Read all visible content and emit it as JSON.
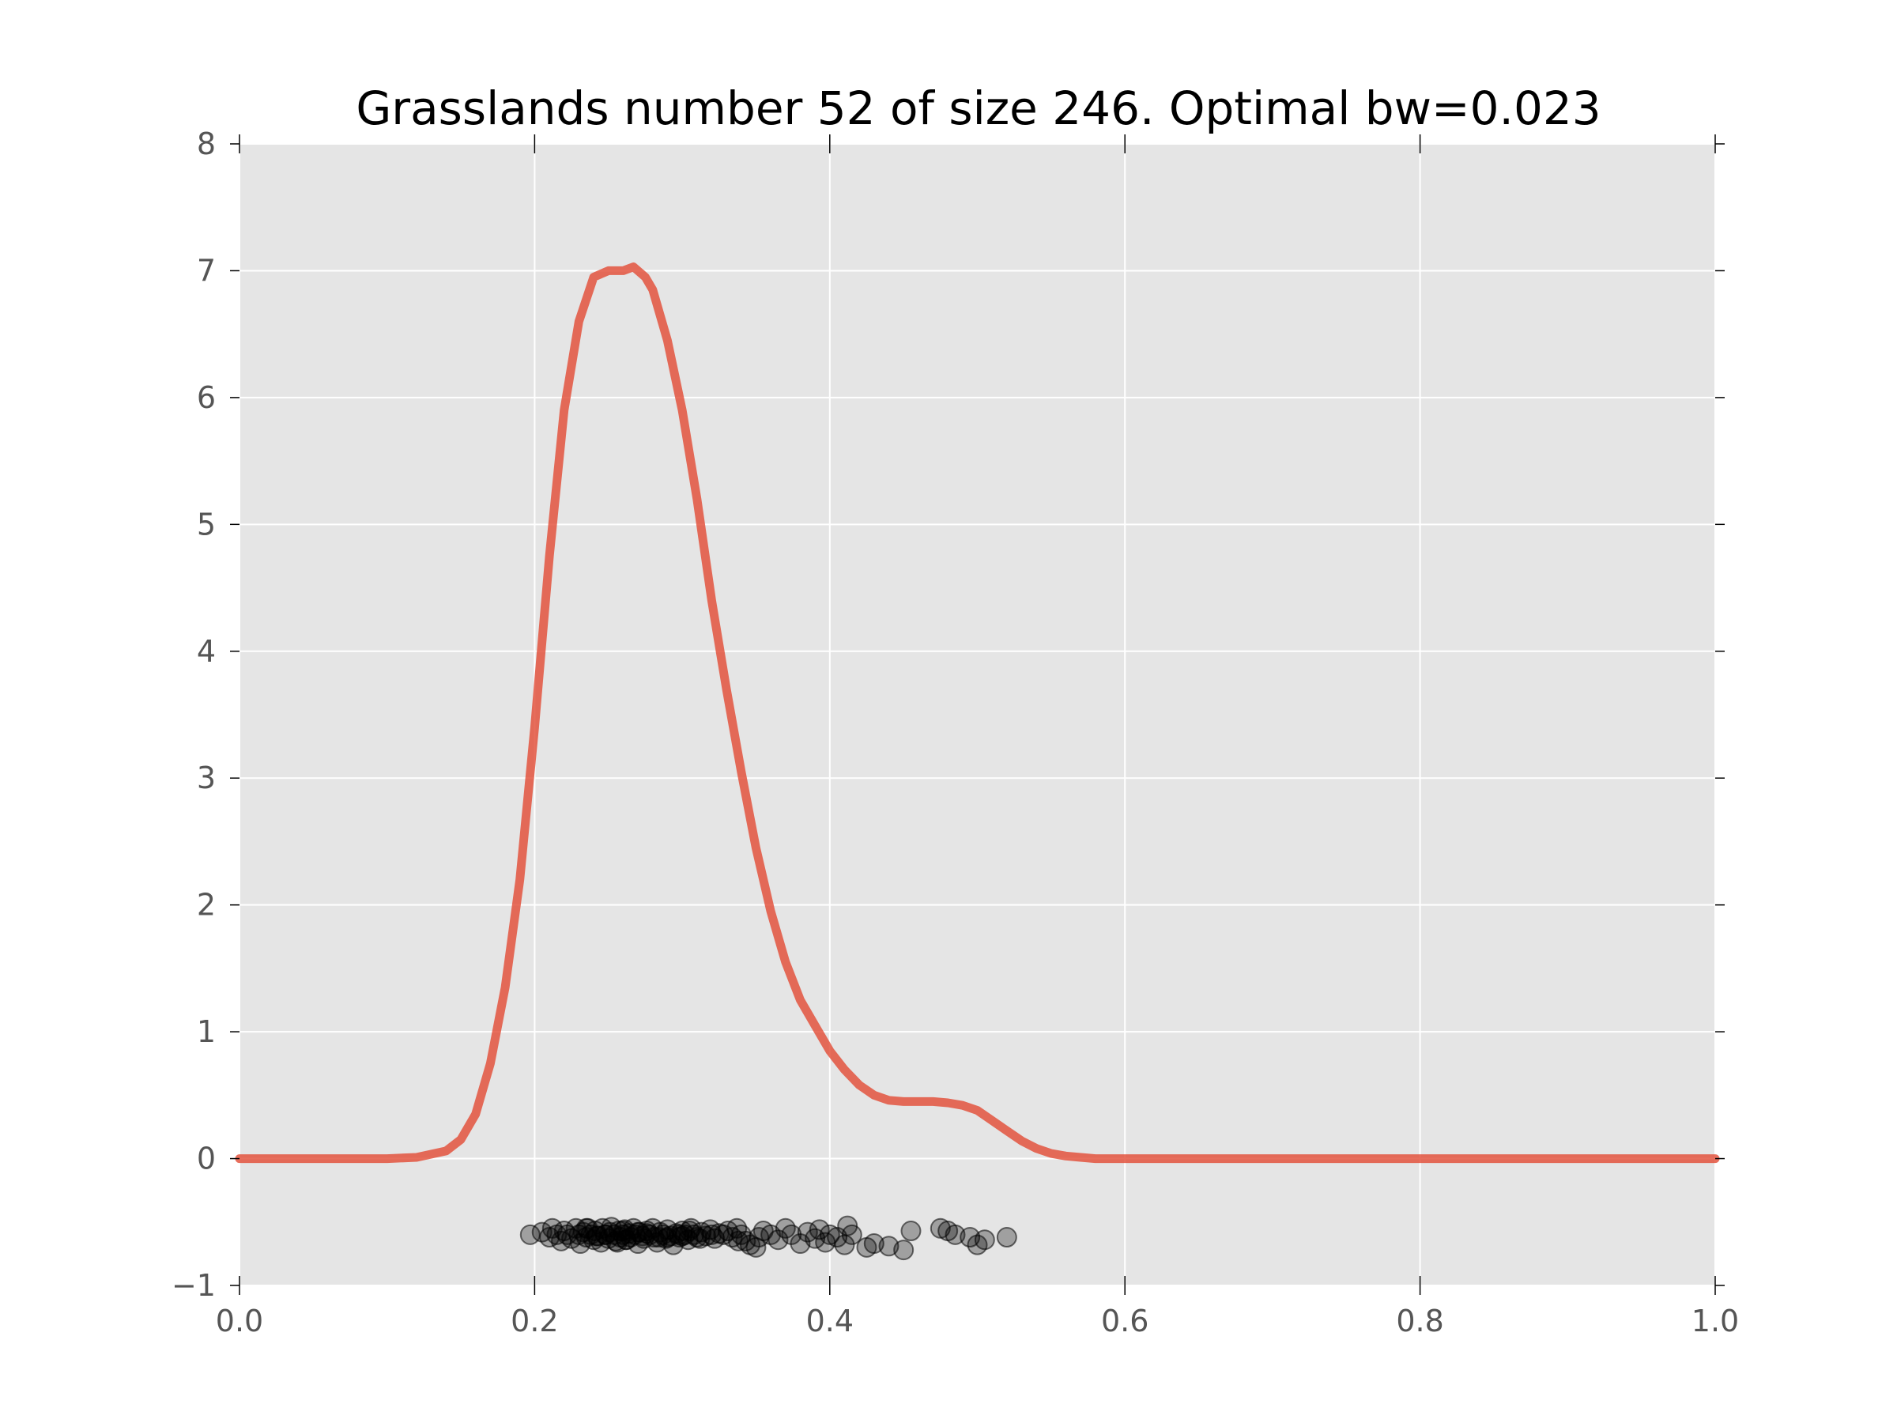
{
  "chart_data": {
    "type": "line",
    "title": "Grasslands number 52 of size 246. Optimal bw=0.023",
    "xlabel": "",
    "ylabel": "",
    "xlim": [
      0.0,
      1.0
    ],
    "ylim": [
      -1,
      8
    ],
    "grid": true,
    "xticks": [
      0.0,
      0.2,
      0.4,
      0.6,
      0.8,
      1.0
    ],
    "xtick_labels": [
      "0.0",
      "0.2",
      "0.4",
      "0.6",
      "0.8",
      "1.0"
    ],
    "yticks": [
      -1,
      0,
      1,
      2,
      3,
      4,
      5,
      6,
      7,
      8
    ],
    "ytick_labels": [
      "−1",
      "0",
      "1",
      "2",
      "3",
      "4",
      "5",
      "6",
      "7",
      "8"
    ],
    "colors": {
      "background": "#e5e5e5",
      "grid": "#ffffff",
      "density_line": "#e24a33",
      "points": "#000000"
    },
    "series": [
      {
        "kind": "line",
        "x": [
          0.0,
          0.05,
          0.1,
          0.12,
          0.14,
          0.15,
          0.16,
          0.17,
          0.18,
          0.19,
          0.2,
          0.21,
          0.22,
          0.23,
          0.24,
          0.25,
          0.26,
          0.267,
          0.275,
          0.28,
          0.29,
          0.3,
          0.31,
          0.32,
          0.33,
          0.34,
          0.35,
          0.36,
          0.37,
          0.38,
          0.39,
          0.4,
          0.41,
          0.42,
          0.43,
          0.44,
          0.45,
          0.46,
          0.47,
          0.48,
          0.49,
          0.5,
          0.51,
          0.52,
          0.53,
          0.54,
          0.55,
          0.56,
          0.57,
          0.58,
          0.6,
          0.7,
          0.8,
          0.9,
          1.0
        ],
        "values": [
          0.0,
          0.0,
          0.0,
          0.01,
          0.06,
          0.15,
          0.35,
          0.75,
          1.35,
          2.2,
          3.4,
          4.75,
          5.9,
          6.6,
          6.95,
          7.0,
          7.0,
          7.03,
          6.95,
          6.85,
          6.45,
          5.9,
          5.2,
          4.4,
          3.7,
          3.05,
          2.45,
          1.95,
          1.55,
          1.25,
          1.05,
          0.85,
          0.7,
          0.58,
          0.5,
          0.46,
          0.45,
          0.45,
          0.45,
          0.44,
          0.42,
          0.38,
          0.3,
          0.22,
          0.14,
          0.08,
          0.04,
          0.02,
          0.01,
          0.0,
          0.0,
          0.0,
          0.0,
          0.0,
          0.0
        ]
      },
      {
        "kind": "scatter",
        "x": [
          0.197,
          0.205,
          0.21,
          0.212,
          0.215,
          0.218,
          0.22,
          0.222,
          0.225,
          0.228,
          0.23,
          0.231,
          0.233,
          0.235,
          0.236,
          0.238,
          0.24,
          0.241,
          0.243,
          0.245,
          0.246,
          0.248,
          0.25,
          0.251,
          0.252,
          0.254,
          0.255,
          0.257,
          0.258,
          0.26,
          0.261,
          0.262,
          0.264,
          0.265,
          0.267,
          0.268,
          0.27,
          0.271,
          0.273,
          0.274,
          0.276,
          0.278,
          0.28,
          0.281,
          0.283,
          0.285,
          0.287,
          0.289,
          0.29,
          0.292,
          0.294,
          0.296,
          0.298,
          0.3,
          0.302,
          0.304,
          0.306,
          0.308,
          0.31,
          0.313,
          0.316,
          0.319,
          0.322,
          0.325,
          0.328,
          0.331,
          0.334,
          0.337,
          0.34,
          0.343,
          0.346,
          0.35,
          0.352,
          0.355,
          0.36,
          0.365,
          0.37,
          0.374,
          0.38,
          0.385,
          0.39,
          0.393,
          0.397,
          0.4,
          0.405,
          0.41,
          0.412,
          0.415,
          0.425,
          0.43,
          0.44,
          0.45,
          0.455,
          0.475,
          0.48,
          0.485,
          0.495,
          0.5,
          0.505,
          0.52,
          0.235,
          0.248,
          0.262,
          0.276,
          0.29,
          0.305,
          0.32,
          0.338,
          0.242,
          0.256,
          0.27,
          0.284,
          0.298,
          0.312,
          0.26,
          0.3
        ],
        "values": [
          -0.6,
          -0.58,
          -0.62,
          -0.55,
          -0.6,
          -0.65,
          -0.57,
          -0.6,
          -0.63,
          -0.55,
          -0.6,
          -0.67,
          -0.58,
          -0.62,
          -0.55,
          -0.6,
          -0.64,
          -0.57,
          -0.61,
          -0.66,
          -0.55,
          -0.6,
          -0.63,
          -0.58,
          -0.54,
          -0.6,
          -0.65,
          -0.57,
          -0.62,
          -0.6,
          -0.56,
          -0.64,
          -0.59,
          -0.62,
          -0.55,
          -0.6,
          -0.67,
          -0.58,
          -0.61,
          -0.63,
          -0.57,
          -0.6,
          -0.55,
          -0.62,
          -0.66,
          -0.58,
          -0.6,
          -0.63,
          -0.56,
          -0.61,
          -0.68,
          -0.59,
          -0.62,
          -0.57,
          -0.6,
          -0.64,
          -0.55,
          -0.6,
          -0.62,
          -0.58,
          -0.61,
          -0.56,
          -0.63,
          -0.59,
          -0.6,
          -0.57,
          -0.62,
          -0.55,
          -0.6,
          -0.65,
          -0.68,
          -0.7,
          -0.62,
          -0.57,
          -0.6,
          -0.64,
          -0.55,
          -0.6,
          -0.67,
          -0.58,
          -0.63,
          -0.56,
          -0.66,
          -0.6,
          -0.62,
          -0.68,
          -0.53,
          -0.6,
          -0.7,
          -0.67,
          -0.69,
          -0.72,
          -0.57,
          -0.55,
          -0.57,
          -0.6,
          -0.62,
          -0.68,
          -0.64,
          -0.62,
          -0.55,
          -0.6,
          -0.64,
          -0.59,
          -0.62,
          -0.57,
          -0.6,
          -0.65,
          -0.61,
          -0.66,
          -0.58,
          -0.62,
          -0.6,
          -0.63,
          -0.57,
          -0.61
        ]
      }
    ]
  }
}
